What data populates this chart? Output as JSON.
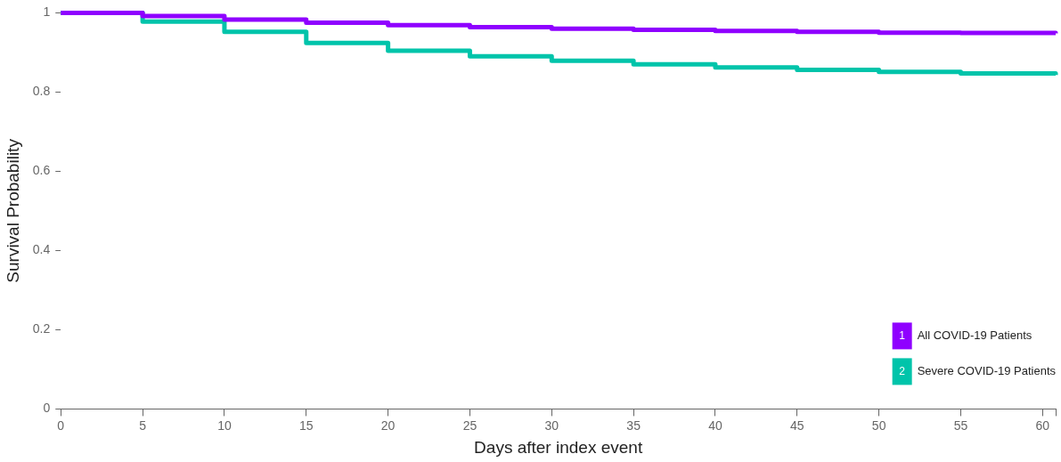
{
  "chart_data": {
    "type": "step",
    "xlabel": "Days after index event",
    "ylabel": "Survival Probability",
    "xlim": [
      0,
      60.8
    ],
    "xticks": [
      0,
      5,
      10,
      15,
      20,
      25,
      30,
      35,
      40,
      45,
      50,
      55,
      60,
      {
        "value": 60.8,
        "label": null
      }
    ],
    "ylim": [
      0,
      1
    ],
    "annotations": [
      "1",
      "2"
    ],
    "yticks": [
      0,
      0.2,
      0.4,
      0.6,
      0.8,
      1
    ],
    "x": [
      0,
      5,
      10,
      15,
      20,
      25,
      30,
      35,
      40,
      45,
      50,
      55,
      60.8
    ],
    "series": [
      {
        "name": "All COVID-19 Patients",
        "color": "#8f00ff",
        "values": [
          1,
          0.992,
          0.983,
          0.975,
          0.969,
          0.964,
          0.96,
          0.957,
          0.954,
          0.952,
          0.95,
          0.949,
          0.948
        ]
      },
      {
        "name": "Severe COVID-19 Patients",
        "color": "#00c4aa",
        "values": [
          1,
          0.978,
          0.952,
          0.924,
          0.904,
          0.89,
          0.879,
          0.87,
          0.862,
          0.856,
          0.851,
          0.847,
          0.843
        ]
      }
    ],
    "grid": false,
    "legend": "bottom right",
    "marker": "none",
    "line_style": "solid"
  }
}
